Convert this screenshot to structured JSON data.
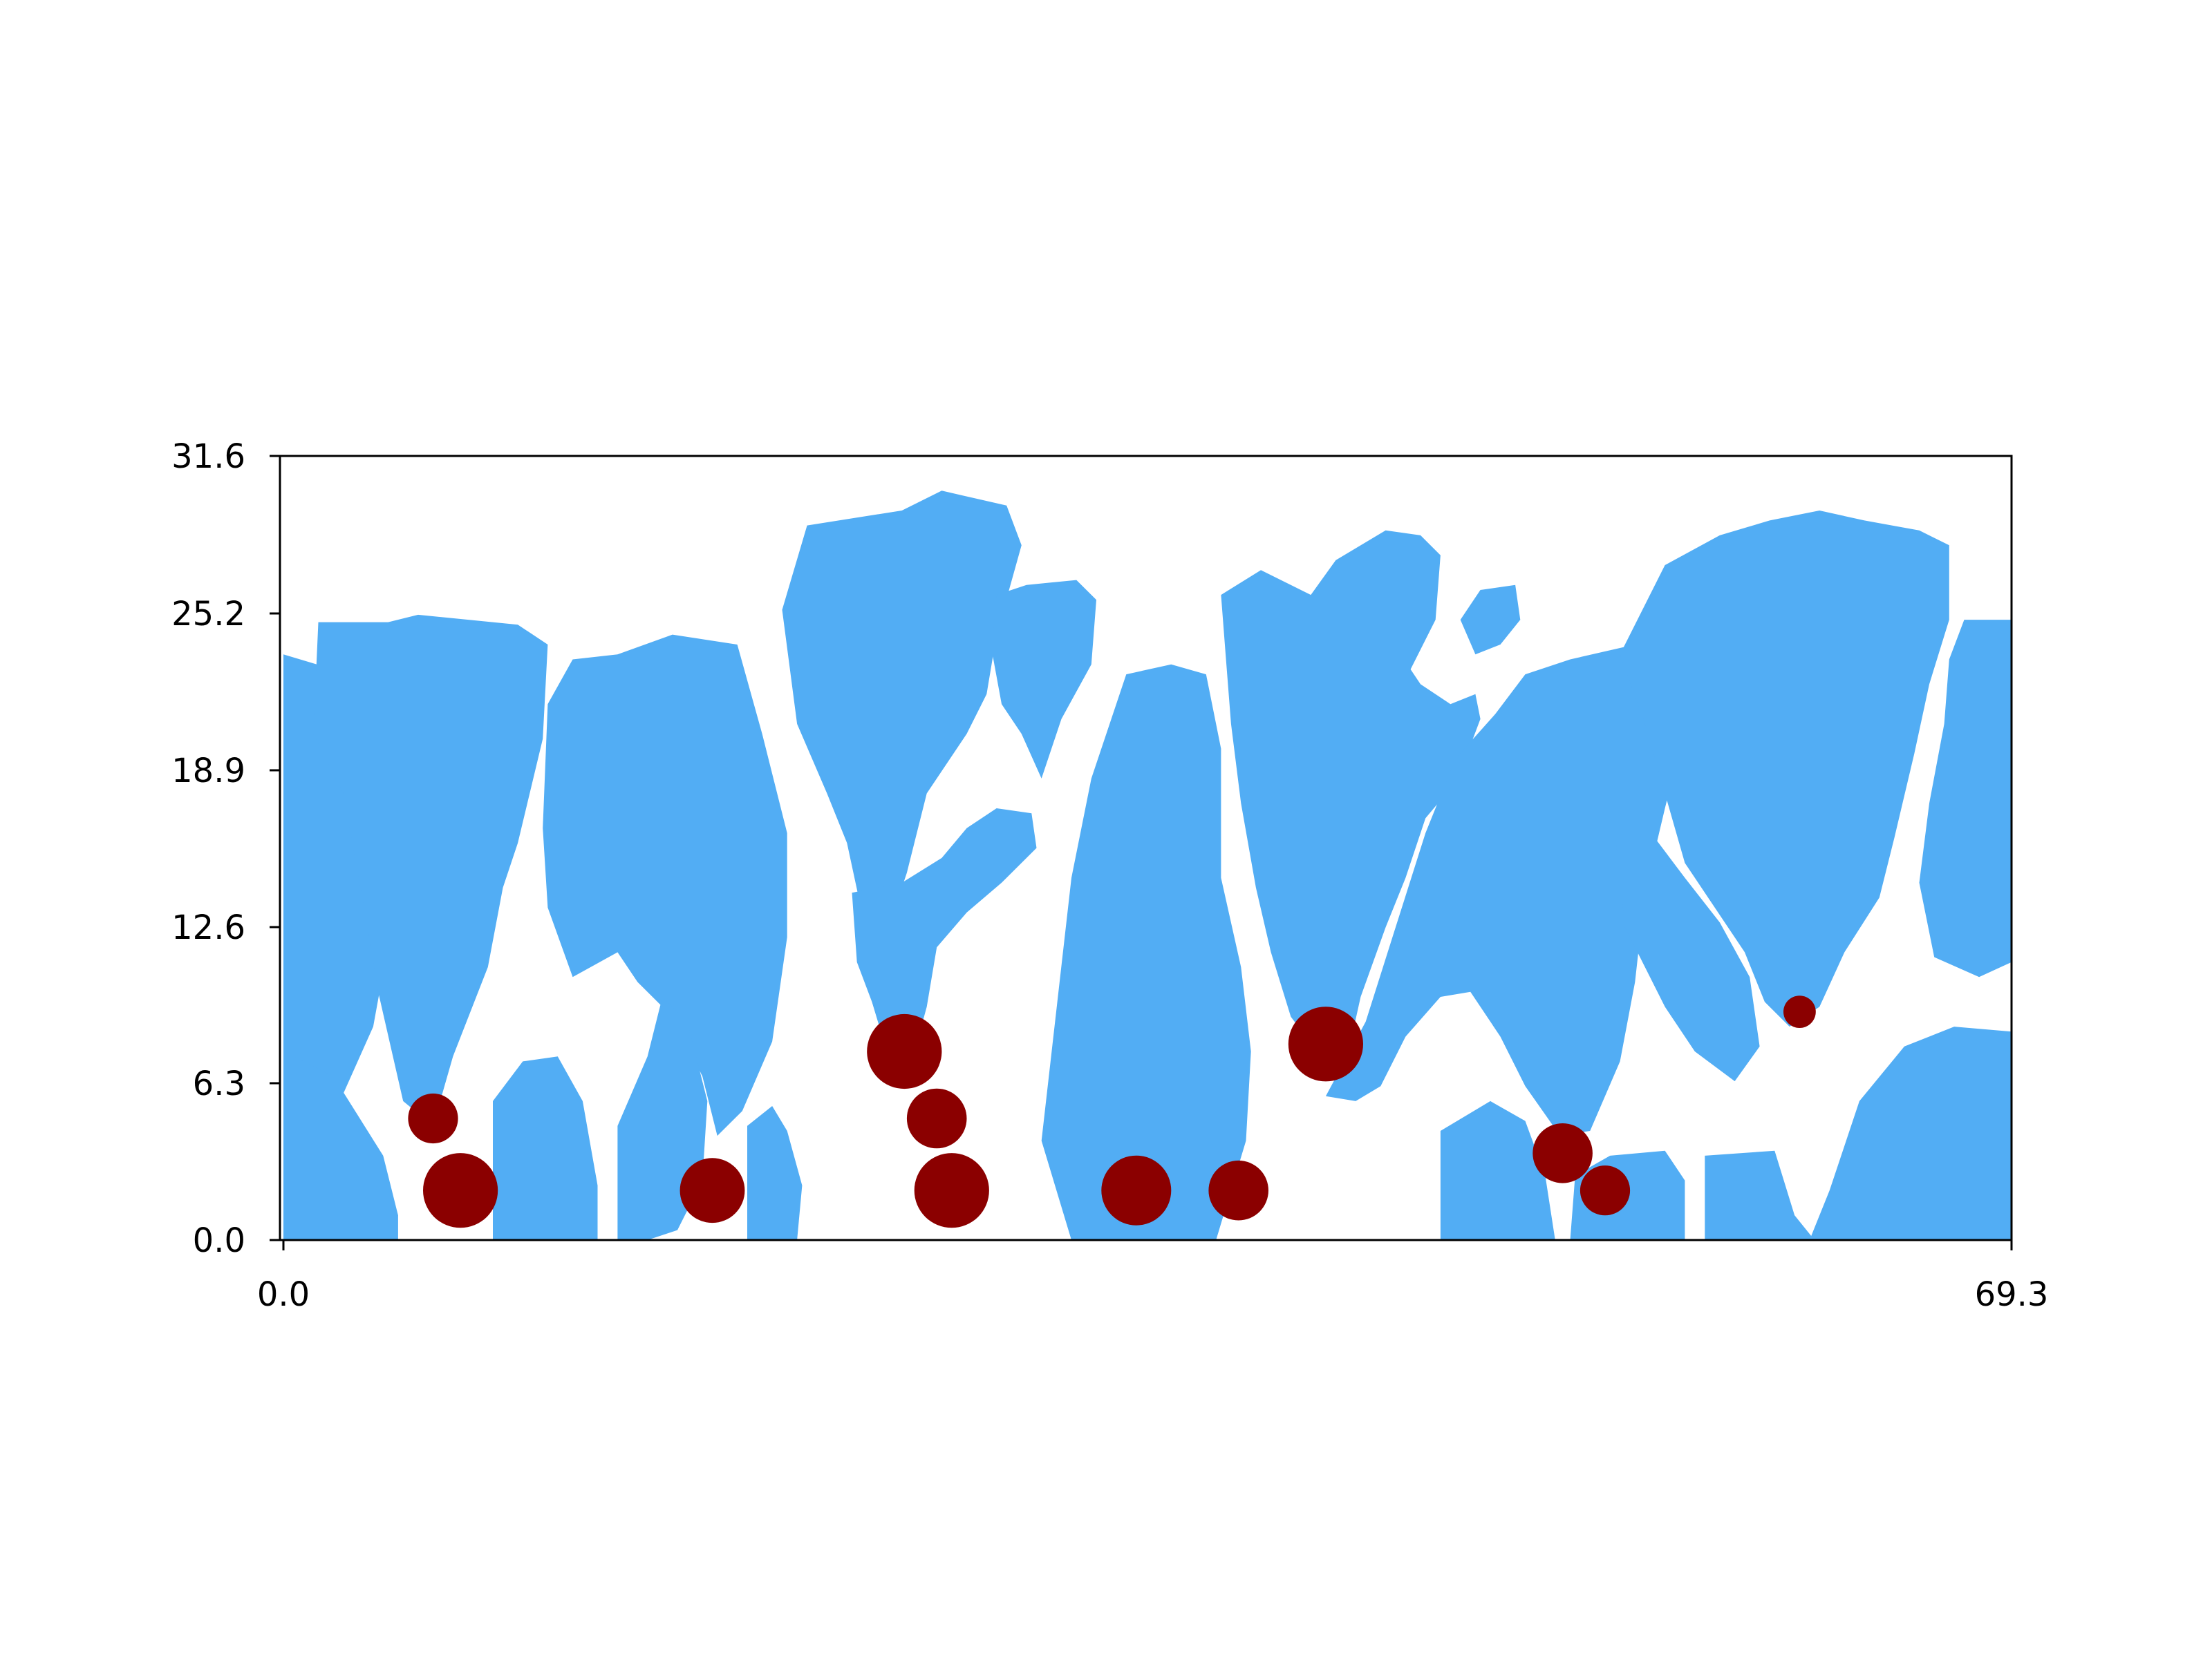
{
  "chart_data": {
    "type": "scatter",
    "title": "",
    "xlabel": "",
    "ylabel": "",
    "xlim": [
      0.0,
      69.3
    ],
    "ylim": [
      0.0,
      31.6
    ],
    "x_ticks": [
      "0.0",
      "69.3"
    ],
    "y_ticks": [
      "0.0",
      "6.3",
      "12.6",
      "18.9",
      "25.2",
      "31.6"
    ],
    "grid": false,
    "colors": {
      "fill": "#52adf4",
      "marker": "#8b0000",
      "axis": "#000000"
    },
    "regions": [
      {
        "name": "grain-1",
        "polygon": [
          [
            0.0,
            0.0
          ],
          [
            0.0,
            23.6
          ],
          [
            2.0,
            23.0
          ],
          [
            2.6,
            19.0
          ],
          [
            4.4,
            13.0
          ],
          [
            3.6,
            8.6
          ],
          [
            2.0,
            5.0
          ],
          [
            0.0,
            4.0
          ]
        ]
      },
      {
        "name": "grain-2",
        "polygon": [
          [
            1.2,
            20.4
          ],
          [
            1.4,
            24.9
          ],
          [
            4.2,
            24.9
          ],
          [
            5.4,
            25.2
          ],
          [
            9.4,
            24.8
          ],
          [
            10.6,
            24.0
          ],
          [
            10.4,
            20.2
          ],
          [
            9.4,
            16.0
          ],
          [
            8.8,
            14.2
          ],
          [
            8.2,
            11.0
          ],
          [
            6.8,
            7.4
          ],
          [
            6.0,
            4.6
          ],
          [
            4.8,
            5.6
          ],
          [
            3.8,
            10.0
          ],
          [
            3.2,
            13.6
          ],
          [
            2.4,
            18.0
          ]
        ]
      },
      {
        "name": "grain-3",
        "polygon": [
          [
            0.0,
            0.0
          ],
          [
            0.0,
            7.6
          ],
          [
            2.0,
            6.6
          ],
          [
            4.0,
            3.4
          ],
          [
            4.6,
            1.0
          ],
          [
            4.6,
            0.0
          ]
        ]
      },
      {
        "name": "grain-4",
        "polygon": [
          [
            10.6,
            21.6
          ],
          [
            11.6,
            23.4
          ],
          [
            13.4,
            23.6
          ],
          [
            15.6,
            24.4
          ],
          [
            18.2,
            24.0
          ],
          [
            19.2,
            20.4
          ],
          [
            20.2,
            16.4
          ],
          [
            20.2,
            12.2
          ],
          [
            19.6,
            8.0
          ],
          [
            18.4,
            5.2
          ],
          [
            17.4,
            4.2
          ],
          [
            16.8,
            6.6
          ],
          [
            15.6,
            9.0
          ],
          [
            14.2,
            10.4
          ],
          [
            13.4,
            11.6
          ],
          [
            11.6,
            10.6
          ],
          [
            10.6,
            13.4
          ],
          [
            10.4,
            16.6
          ]
        ]
      },
      {
        "name": "grain-5",
        "polygon": [
          [
            8.4,
            0.0
          ],
          [
            8.4,
            5.6
          ],
          [
            9.6,
            7.2
          ],
          [
            11.0,
            7.4
          ],
          [
            12.0,
            5.6
          ],
          [
            12.6,
            2.2
          ],
          [
            12.6,
            0.0
          ]
        ]
      },
      {
        "name": "grain-6",
        "polygon": [
          [
            13.4,
            0.0
          ],
          [
            13.4,
            4.6
          ],
          [
            14.6,
            7.4
          ],
          [
            15.2,
            9.8
          ],
          [
            16.2,
            8.8
          ],
          [
            17.0,
            5.6
          ],
          [
            16.8,
            2.4
          ],
          [
            15.8,
            0.4
          ],
          [
            14.6,
            0.0
          ]
        ]
      },
      {
        "name": "grain-7",
        "polygon": [
          [
            18.6,
            0.0
          ],
          [
            18.6,
            4.6
          ],
          [
            19.6,
            5.4
          ],
          [
            20.2,
            4.4
          ],
          [
            20.8,
            2.2
          ],
          [
            20.6,
            0.0
          ]
        ]
      },
      {
        "name": "grain-8",
        "polygon": [
          [
            20.0,
            25.4
          ],
          [
            21.0,
            28.8
          ],
          [
            24.8,
            29.4
          ],
          [
            26.4,
            30.2
          ],
          [
            29.0,
            29.6
          ],
          [
            29.6,
            28.0
          ],
          [
            28.6,
            24.4
          ],
          [
            28.2,
            22.0
          ],
          [
            27.4,
            20.4
          ],
          [
            25.8,
            18.0
          ],
          [
            25.0,
            14.8
          ],
          [
            24.2,
            12.4
          ],
          [
            23.2,
            13.2
          ],
          [
            22.6,
            16.0
          ],
          [
            21.8,
            18.0
          ],
          [
            20.6,
            20.8
          ]
        ]
      },
      {
        "name": "grain-9",
        "polygon": [
          [
            28.6,
            26.0
          ],
          [
            29.8,
            26.4
          ],
          [
            31.8,
            26.6
          ],
          [
            32.6,
            25.8
          ],
          [
            32.4,
            23.2
          ],
          [
            31.2,
            21.0
          ],
          [
            30.4,
            18.6
          ],
          [
            29.6,
            20.4
          ],
          [
            28.8,
            21.6
          ],
          [
            28.4,
            23.8
          ]
        ]
      },
      {
        "name": "grain-10",
        "polygon": [
          [
            22.8,
            14.0
          ],
          [
            23.0,
            11.2
          ],
          [
            23.6,
            9.6
          ],
          [
            24.2,
            7.6
          ],
          [
            25.2,
            7.2
          ],
          [
            25.8,
            9.4
          ],
          [
            26.2,
            11.8
          ],
          [
            27.4,
            13.2
          ],
          [
            28.8,
            14.4
          ],
          [
            30.2,
            15.8
          ],
          [
            30.0,
            17.2
          ],
          [
            28.6,
            17.4
          ],
          [
            27.4,
            16.6
          ],
          [
            26.4,
            15.4
          ],
          [
            24.8,
            14.4
          ]
        ]
      },
      {
        "name": "grain-11",
        "polygon": [
          [
            30.4,
            4.0
          ],
          [
            31.6,
            14.6
          ],
          [
            32.4,
            18.6
          ],
          [
            33.8,
            22.8
          ],
          [
            35.6,
            23.2
          ],
          [
            37.0,
            22.8
          ],
          [
            37.6,
            19.8
          ],
          [
            37.6,
            14.6
          ],
          [
            38.4,
            11.0
          ],
          [
            38.8,
            7.6
          ],
          [
            38.6,
            4.0
          ],
          [
            37.4,
            0.0
          ],
          [
            31.6,
            0.0
          ]
        ]
      },
      {
        "name": "grain-12",
        "polygon": [
          [
            37.6,
            26.0
          ],
          [
            39.2,
            27.0
          ],
          [
            41.2,
            26.0
          ],
          [
            42.2,
            27.4
          ],
          [
            44.2,
            28.6
          ],
          [
            45.6,
            28.4
          ],
          [
            46.4,
            27.6
          ],
          [
            46.2,
            25.0
          ],
          [
            45.2,
            23.0
          ],
          [
            45.6,
            22.4
          ],
          [
            46.8,
            21.6
          ],
          [
            47.8,
            22.0
          ],
          [
            48.0,
            21.0
          ],
          [
            47.4,
            19.4
          ],
          [
            46.8,
            18.2
          ],
          [
            45.8,
            17.0
          ],
          [
            45.0,
            14.6
          ],
          [
            44.2,
            12.6
          ],
          [
            43.2,
            9.8
          ],
          [
            42.8,
            8.0
          ],
          [
            41.6,
            7.4
          ],
          [
            40.4,
            9.0
          ],
          [
            39.6,
            11.6
          ],
          [
            39.0,
            14.2
          ],
          [
            38.4,
            17.6
          ],
          [
            38.0,
            20.8
          ],
          [
            37.8,
            23.4
          ]
        ]
      },
      {
        "name": "grain-13",
        "polygon": [
          [
            47.2,
            25.0
          ],
          [
            48.0,
            26.2
          ],
          [
            49.4,
            26.4
          ],
          [
            49.6,
            25.0
          ],
          [
            48.8,
            24.0
          ],
          [
            47.8,
            23.6
          ]
        ]
      },
      {
        "name": "grain-14",
        "polygon": [
          [
            41.8,
            5.8
          ],
          [
            43.4,
            8.8
          ],
          [
            44.6,
            12.6
          ],
          [
            45.8,
            16.4
          ],
          [
            47.0,
            19.4
          ],
          [
            48.6,
            21.2
          ],
          [
            49.8,
            22.8
          ],
          [
            51.6,
            23.4
          ],
          [
            54.2,
            24.0
          ],
          [
            55.8,
            23.4
          ],
          [
            56.2,
            20.6
          ],
          [
            55.4,
            17.4
          ],
          [
            54.6,
            14.0
          ],
          [
            54.2,
            10.4
          ],
          [
            53.6,
            7.2
          ],
          [
            52.4,
            4.4
          ],
          [
            51.2,
            4.2
          ],
          [
            49.8,
            6.2
          ],
          [
            48.8,
            8.2
          ],
          [
            47.6,
            10.0
          ],
          [
            46.4,
            9.8
          ],
          [
            45.0,
            8.2
          ],
          [
            44.0,
            6.2
          ],
          [
            43.0,
            5.6
          ]
        ]
      },
      {
        "name": "grain-15",
        "polygon": [
          [
            53.6,
            23.6
          ],
          [
            55.4,
            27.2
          ],
          [
            57.6,
            28.4
          ],
          [
            59.6,
            29.0
          ],
          [
            61.6,
            29.4
          ],
          [
            63.4,
            29.0
          ],
          [
            65.6,
            28.6
          ],
          [
            66.8,
            28.0
          ],
          [
            66.8,
            25.0
          ],
          [
            66.0,
            22.4
          ],
          [
            65.4,
            19.6
          ],
          [
            64.6,
            16.2
          ],
          [
            64.0,
            13.8
          ],
          [
            62.6,
            11.6
          ],
          [
            61.6,
            9.4
          ],
          [
            60.4,
            8.6
          ],
          [
            59.4,
            9.6
          ],
          [
            58.6,
            11.6
          ],
          [
            57.4,
            13.4
          ],
          [
            56.2,
            15.2
          ],
          [
            55.4,
            18.0
          ],
          [
            54.6,
            20.8
          ]
        ]
      },
      {
        "name": "grain-16",
        "polygon": [
          [
            66.6,
            20.8
          ],
          [
            66.8,
            23.4
          ],
          [
            67.4,
            25.0
          ],
          [
            69.3,
            25.0
          ],
          [
            69.3,
            11.2
          ],
          [
            68.0,
            10.6
          ],
          [
            66.2,
            11.4
          ],
          [
            65.6,
            14.4
          ],
          [
            66.0,
            17.6
          ]
        ]
      },
      {
        "name": "grain-17",
        "polygon": [
          [
            53.4,
            16.4
          ],
          [
            53.8,
            12.6
          ],
          [
            55.4,
            9.4
          ],
          [
            56.6,
            7.6
          ],
          [
            58.2,
            6.4
          ],
          [
            59.2,
            7.8
          ],
          [
            58.8,
            10.6
          ],
          [
            57.6,
            12.8
          ],
          [
            56.2,
            14.6
          ],
          [
            55.0,
            16.2
          ]
        ]
      },
      {
        "name": "grain-18",
        "polygon": [
          [
            57.0,
            0.0
          ],
          [
            57.0,
            3.4
          ],
          [
            59.8,
            3.6
          ],
          [
            60.6,
            1.0
          ],
          [
            61.4,
            0.0
          ]
        ]
      },
      {
        "name": "grain-19",
        "polygon": [
          [
            61.2,
            0.0
          ],
          [
            62.0,
            2.0
          ],
          [
            63.2,
            5.6
          ],
          [
            65.0,
            7.8
          ],
          [
            67.0,
            8.6
          ],
          [
            69.3,
            8.4
          ],
          [
            69.3,
            0.0
          ]
        ]
      },
      {
        "name": "grain-20",
        "polygon": [
          [
            46.4,
            0.0
          ],
          [
            46.4,
            4.4
          ],
          [
            48.4,
            5.6
          ],
          [
            49.8,
            4.8
          ],
          [
            50.6,
            2.6
          ],
          [
            51.0,
            0.0
          ]
        ]
      },
      {
        "name": "grain-21",
        "polygon": [
          [
            51.6,
            0.0
          ],
          [
            51.8,
            2.6
          ],
          [
            53.2,
            3.4
          ],
          [
            55.4,
            3.6
          ],
          [
            56.2,
            2.4
          ],
          [
            56.2,
            0.0
          ]
        ]
      }
    ],
    "points": [
      {
        "x": 6.0,
        "y": 4.9,
        "r": 1.0
      },
      {
        "x": 7.1,
        "y": 2.0,
        "r": 1.5
      },
      {
        "x": 17.2,
        "y": 2.0,
        "r": 1.3
      },
      {
        "x": 24.9,
        "y": 7.6,
        "r": 1.5
      },
      {
        "x": 26.2,
        "y": 4.9,
        "r": 1.2
      },
      {
        "x": 26.8,
        "y": 2.0,
        "r": 1.5
      },
      {
        "x": 34.2,
        "y": 2.0,
        "r": 1.4
      },
      {
        "x": 38.3,
        "y": 2.0,
        "r": 1.2
      },
      {
        "x": 41.8,
        "y": 7.9,
        "r": 1.5
      },
      {
        "x": 51.3,
        "y": 3.5,
        "r": 1.2
      },
      {
        "x": 53.0,
        "y": 2.0,
        "r": 1.0
      },
      {
        "x": 60.8,
        "y": 9.2,
        "r": 0.65
      }
    ]
  }
}
